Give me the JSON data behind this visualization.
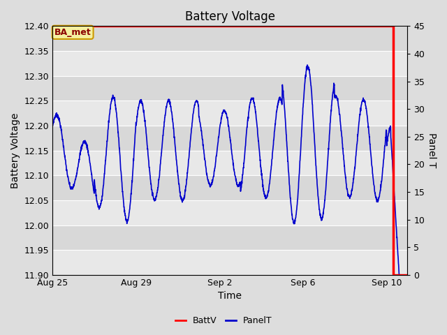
{
  "title": "Battery Voltage",
  "xlabel": "Time",
  "ylabel_left": "Battery Voltage",
  "ylabel_right": "Panel T",
  "ylim_left": [
    11.9,
    12.4
  ],
  "ylim_right": [
    0,
    45
  ],
  "yticks_left": [
    11.9,
    11.95,
    12.0,
    12.05,
    12.1,
    12.15,
    12.2,
    12.25,
    12.3,
    12.35,
    12.4
  ],
  "yticks_right": [
    0,
    5,
    10,
    15,
    20,
    25,
    30,
    35,
    40,
    45
  ],
  "xtick_positions": [
    0,
    4,
    8,
    12,
    16
  ],
  "xtick_labels": [
    "Aug 25",
    "Aug 29",
    "Sep 2",
    "Sep 6",
    "Sep 10"
  ],
  "legend_labels": [
    "BattV",
    "PanelT"
  ],
  "battv_color": "#ff0000",
  "panelt_color": "#0000cc",
  "fig_bg": "#dddddd",
  "plot_bg_light": "#e8e8e8",
  "plot_bg_dark": "#d8d8d8",
  "annotation_text": "BA_met",
  "annotation_fg": "#8B0000",
  "annotation_bg": "#f5f0a0",
  "annotation_border": "#cc9900",
  "title_fontsize": 12,
  "axis_fontsize": 9,
  "label_fontsize": 10,
  "t_total": 17.0,
  "batt_drop_day": 16.3,
  "batt_drop_low": 11.9
}
